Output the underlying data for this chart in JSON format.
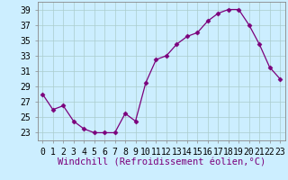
{
  "x": [
    0,
    1,
    2,
    3,
    4,
    5,
    6,
    7,
    8,
    9,
    10,
    11,
    12,
    13,
    14,
    15,
    16,
    17,
    18,
    19,
    20,
    21,
    22,
    23
  ],
  "y": [
    28,
    26,
    26.5,
    24.5,
    23.5,
    23,
    23,
    23,
    25.5,
    24.5,
    29.5,
    32.5,
    33,
    34.5,
    35.5,
    36,
    37.5,
    38.5,
    39,
    39,
    37,
    34.5,
    31.5,
    30
  ],
  "line_color": "#7B007B",
  "marker": "D",
  "marker_size": 2.5,
  "bg_color": "#cceeff",
  "grid_color": "#aacccc",
  "xlabel": "Windchill (Refroidissement éolien,°C)",
  "xlabel_fontsize": 7.5,
  "ylim": [
    22,
    40
  ],
  "yticks": [
    23,
    25,
    27,
    29,
    31,
    33,
    35,
    37,
    39
  ],
  "tick_fontsize": 7,
  "line_width": 0.9
}
